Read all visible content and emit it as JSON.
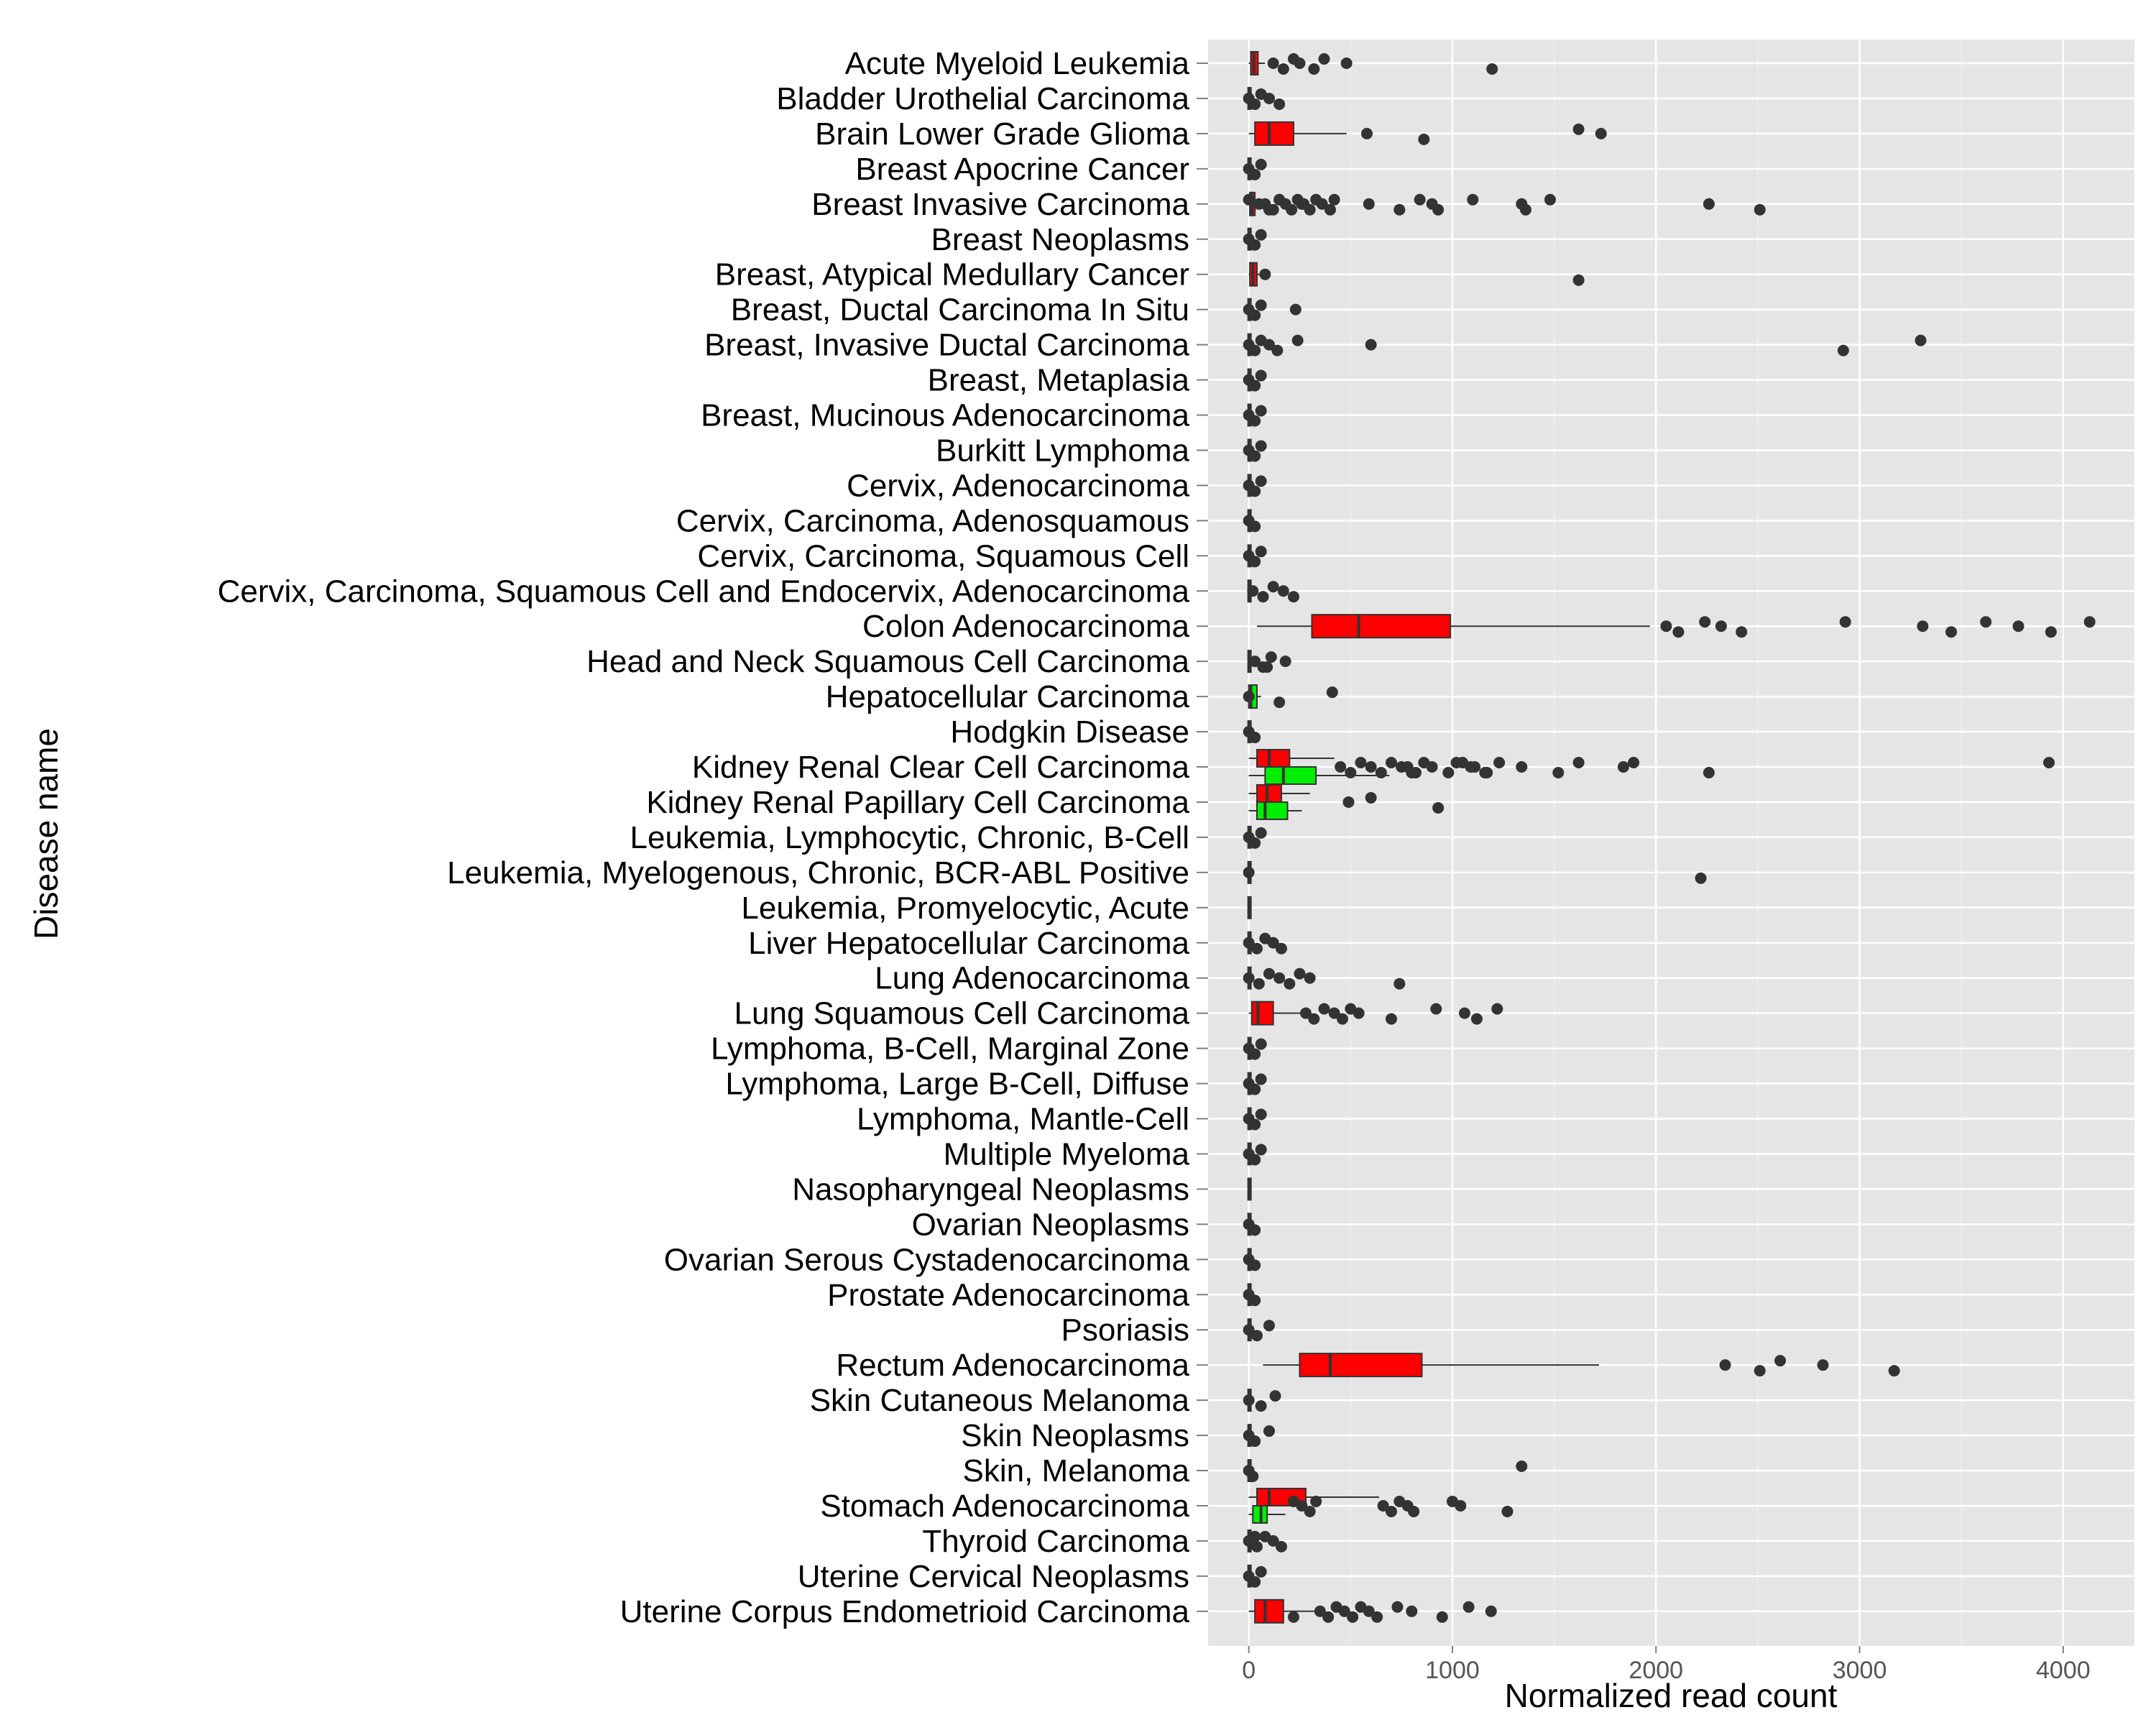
{
  "chart_data": {
    "type": "boxplot",
    "orientation": "horizontal",
    "xlabel": "Normalized read count",
    "ylabel": "Disease name",
    "xlim": [
      -200,
      4350
    ],
    "x_ticks": [
      0,
      1000,
      2000,
      3000,
      4000
    ],
    "x_tick_labels": [
      "0",
      "1000",
      "2000",
      "3000",
      "4000"
    ],
    "grid": true,
    "colors": {
      "panel": "#e5e5e5",
      "grid": "#ffffff",
      "red": "#ff0000",
      "green": "#00ee00",
      "outline": "#333333"
    },
    "categories": [
      "Acute Myeloid Leukemia",
      "Bladder Urothelial Carcinoma",
      "Brain Lower Grade Glioma",
      "Breast Apocrine Cancer",
      "Breast Invasive Carcinoma",
      "Breast Neoplasms",
      "Breast, Atypical Medullary Cancer",
      "Breast, Ductal Carcinoma In Situ",
      "Breast, Invasive Ductal Carcinoma",
      "Breast, Metaplasia",
      "Breast, Mucinous Adenocarcinoma",
      "Burkitt Lymphoma",
      "Cervix, Adenocarcinoma",
      "Cervix, Carcinoma, Adenosquamous",
      "Cervix, Carcinoma, Squamous Cell",
      "Cervix, Carcinoma, Squamous Cell and Endocervix, Adenocarcinoma",
      "Colon Adenocarcinoma",
      "Head and Neck Squamous Cell Carcinoma",
      "Hepatocellular Carcinoma",
      "Hodgkin Disease",
      "Kidney Renal Clear Cell Carcinoma",
      "Kidney Renal Papillary Cell Carcinoma",
      "Leukemia, Lymphocytic, Chronic, B-Cell",
      "Leukemia, Myelogenous, Chronic, BCR-ABL Positive",
      "Leukemia, Promyelocytic, Acute",
      "Liver Hepatocellular Carcinoma",
      "Lung Adenocarcinoma",
      "Lung Squamous Cell Carcinoma",
      "Lymphoma, B-Cell, Marginal Zone",
      "Lymphoma, Large B-Cell, Diffuse",
      "Lymphoma, Mantle-Cell",
      "Multiple Myeloma",
      "Nasopharyngeal Neoplasms",
      "Ovarian Neoplasms",
      "Ovarian Serous Cystadenocarcinoma",
      "Prostate Adenocarcinoma",
      "Psoriasis",
      "Rectum Adenocarcinoma",
      "Skin Cutaneous Melanoma",
      "Skin Neoplasms",
      "Skin, Melanoma",
      "Stomach Adenocarcinoma",
      "Thyroid Carcinoma",
      "Uterine Cervical Neoplasms",
      "Uterine Corpus Endometrioid Carcinoma"
    ],
    "boxes": [
      {
        "cat": 0,
        "group": "red",
        "q1": 10,
        "med": 25,
        "q3": 45,
        "lo": 0,
        "hi": 80
      },
      {
        "cat": 2,
        "group": "red",
        "q1": 30,
        "med": 100,
        "q3": 220,
        "lo": 0,
        "hi": 480
      },
      {
        "cat": 4,
        "group": "red",
        "q1": 5,
        "med": 15,
        "q3": 30,
        "lo": 0,
        "hi": 60
      },
      {
        "cat": 6,
        "group": "red",
        "q1": 5,
        "med": 20,
        "q3": 40,
        "lo": 0,
        "hi": 60
      },
      {
        "cat": 16,
        "group": "red",
        "q1": 310,
        "med": 540,
        "q3": 990,
        "lo": 40,
        "hi": 1970
      },
      {
        "cat": 18,
        "group": "green",
        "q1": 0,
        "med": 10,
        "q3": 40,
        "lo": 0,
        "hi": 60
      },
      {
        "cat": 20,
        "group": "red",
        "q1": 40,
        "med": 100,
        "q3": 200,
        "lo": 0,
        "hi": 420
      },
      {
        "cat": 20,
        "group": "green",
        "q1": 80,
        "med": 170,
        "q3": 330,
        "lo": 0,
        "hi": 690
      },
      {
        "cat": 21,
        "group": "red",
        "q1": 40,
        "med": 90,
        "q3": 160,
        "lo": 0,
        "hi": 300
      },
      {
        "cat": 21,
        "group": "green",
        "q1": 40,
        "med": 80,
        "q3": 190,
        "lo": 0,
        "hi": 260
      },
      {
        "cat": 27,
        "group": "red",
        "q1": 15,
        "med": 45,
        "q3": 120,
        "lo": 0,
        "hi": 260
      },
      {
        "cat": 37,
        "group": "red",
        "q1": 250,
        "med": 400,
        "q3": 850,
        "lo": 70,
        "hi": 1720
      },
      {
        "cat": 41,
        "group": "red",
        "q1": 40,
        "med": 100,
        "q3": 280,
        "lo": 0,
        "hi": 640
      },
      {
        "cat": 41,
        "group": "green",
        "q1": 20,
        "med": 60,
        "q3": 90,
        "lo": 0,
        "hi": 180
      },
      {
        "cat": 44,
        "group": "red",
        "q1": 30,
        "med": 80,
        "q3": 170,
        "lo": 0,
        "hi": 340
      }
    ],
    "outliers": [
      {
        "cat": 0,
        "values": [
          120,
          170,
          220,
          250,
          320,
          370,
          480,
          1195
        ]
      },
      {
        "cat": 1,
        "values": [
          0,
          30,
          60,
          100,
          150
        ]
      },
      {
        "cat": 2,
        "values": [
          580,
          860,
          1620,
          1730
        ]
      },
      {
        "cat": 3,
        "values": [
          0,
          30,
          60
        ]
      },
      {
        "cat": 4,
        "values": [
          80,
          120,
          150,
          180,
          210,
          240,
          270,
          300,
          330,
          360,
          400,
          420,
          590,
          740,
          840,
          900,
          930,
          1100,
          1340,
          1360,
          1480,
          2260,
          2510,
          0,
          50,
          100,
          150,
          260
        ]
      },
      {
        "cat": 5,
        "values": [
          0,
          30,
          60
        ]
      },
      {
        "cat": 6,
        "values": [
          80,
          1620
        ]
      },
      {
        "cat": 7,
        "values": [
          0,
          30,
          60,
          230
        ]
      },
      {
        "cat": 8,
        "values": [
          0,
          30,
          60,
          100,
          140,
          240,
          600,
          2920,
          3300
        ]
      },
      {
        "cat": 9,
        "values": [
          0,
          30,
          60
        ]
      },
      {
        "cat": 10,
        "values": [
          0,
          30,
          60
        ]
      },
      {
        "cat": 11,
        "values": [
          0,
          30,
          60
        ]
      },
      {
        "cat": 12,
        "values": [
          0,
          30,
          60
        ]
      },
      {
        "cat": 13,
        "values": [
          0,
          30
        ]
      },
      {
        "cat": 14,
        "values": [
          0,
          30,
          60
        ]
      },
      {
        "cat": 15,
        "values": [
          20,
          70,
          120,
          170,
          220
        ]
      },
      {
        "cat": 16,
        "values": [
          2050,
          2110,
          2240,
          2320,
          2420,
          2930,
          3310,
          3450,
          3620,
          3780,
          3940,
          4130
        ]
      },
      {
        "cat": 17,
        "values": [
          30,
          70,
          110,
          180,
          90
        ]
      },
      {
        "cat": 18,
        "values": [
          0,
          150,
          410
        ]
      },
      {
        "cat": 19,
        "values": [
          0,
          30
        ]
      },
      {
        "cat": 20,
        "values": [
          450,
          500,
          550,
          600,
          650,
          700,
          750,
          800,
          860,
          900,
          980,
          1050,
          1110,
          1170,
          1230,
          1340,
          1520,
          1620,
          1840,
          2260,
          3930,
          780,
          820,
          1020,
          1090,
          1160,
          1890
        ]
      },
      {
        "cat": 21,
        "values": [
          490,
          930,
          600
        ]
      },
      {
        "cat": 22,
        "values": [
          0,
          30,
          60
        ]
      },
      {
        "cat": 23,
        "values": [
          0,
          2220
        ]
      },
      {
        "cat": 24,
        "values": []
      },
      {
        "cat": 25,
        "values": [
          0,
          40,
          80,
          120,
          160
        ]
      },
      {
        "cat": 26,
        "values": [
          0,
          50,
          100,
          150,
          200,
          250,
          300,
          740
        ]
      },
      {
        "cat": 27,
        "values": [
          280,
          320,
          370,
          420,
          460,
          500,
          540,
          700,
          920,
          1060,
          1120,
          1220
        ]
      },
      {
        "cat": 28,
        "values": [
          0,
          30,
          60
        ]
      },
      {
        "cat": 29,
        "values": [
          0,
          30,
          60
        ]
      },
      {
        "cat": 30,
        "values": [
          0,
          30,
          60
        ]
      },
      {
        "cat": 31,
        "values": [
          0,
          30,
          60
        ]
      },
      {
        "cat": 32,
        "values": []
      },
      {
        "cat": 33,
        "values": [
          0,
          30
        ]
      },
      {
        "cat": 34,
        "values": [
          0,
          30
        ]
      },
      {
        "cat": 35,
        "values": [
          0,
          30
        ]
      },
      {
        "cat": 36,
        "values": [
          0,
          40,
          100
        ]
      },
      {
        "cat": 37,
        "values": [
          2340,
          2510,
          2610,
          2820,
          3170
        ]
      },
      {
        "cat": 38,
        "values": [
          0,
          60,
          130
        ]
      },
      {
        "cat": 39,
        "values": [
          0,
          30,
          100
        ]
      },
      {
        "cat": 40,
        "values": [
          0,
          20,
          1340
        ]
      },
      {
        "cat": 41,
        "values": [
          660,
          700,
          740,
          780,
          810,
          1000,
          1040,
          1270,
          220,
          260,
          300,
          330
        ]
      },
      {
        "cat": 42,
        "values": [
          0,
          40,
          80,
          120,
          160,
          30
        ]
      },
      {
        "cat": 43,
        "values": [
          0,
          30,
          60
        ]
      },
      {
        "cat": 44,
        "values": [
          350,
          390,
          430,
          470,
          510,
          550,
          590,
          630,
          730,
          800,
          950,
          1080,
          1190,
          220
        ]
      }
    ]
  }
}
